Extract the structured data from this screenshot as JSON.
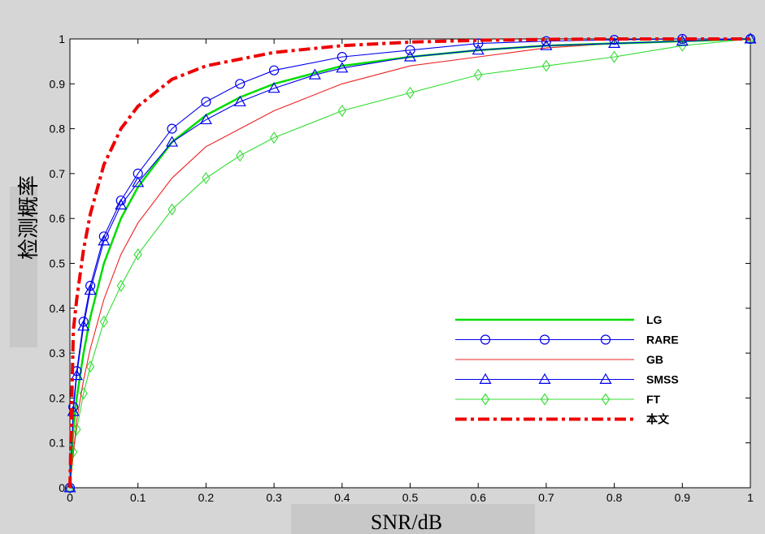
{
  "chart_data": {
    "type": "line",
    "title": "",
    "xlabel": "SNR/dB",
    "ylabel": "检测概率",
    "xlim": [
      0,
      1
    ],
    "ylim": [
      0,
      1
    ],
    "xticks": [
      "0",
      "0.1",
      "0.2",
      "0.3",
      "0.4",
      "0.5",
      "0.6",
      "0.7",
      "0.8",
      "0.9",
      "1"
    ],
    "yticks": [
      "0",
      "0.1",
      "0.2",
      "0.3",
      "0.4",
      "0.5",
      "0.6",
      "0.7",
      "0.8",
      "0.9",
      "1"
    ],
    "grid": false,
    "legend_position": "bottom-right",
    "series": [
      {
        "name": "LG",
        "color": "#00dd00",
        "style": "solid",
        "marker": "none",
        "x": [
          0,
          0.005,
          0.01,
          0.02,
          0.03,
          0.05,
          0.075,
          0.1,
          0.15,
          0.2,
          0.25,
          0.3,
          0.4,
          0.5,
          0.6,
          0.7,
          0.8,
          0.9,
          1.0
        ],
        "y": [
          0,
          0.13,
          0.2,
          0.3,
          0.38,
          0.5,
          0.6,
          0.67,
          0.77,
          0.83,
          0.87,
          0.9,
          0.94,
          0.96,
          0.975,
          0.985,
          0.99,
          0.995,
          1.0
        ]
      },
      {
        "name": "RARE",
        "color": "#0000ee",
        "style": "solid",
        "marker": "circle",
        "x": [
          0,
          0.005,
          0.01,
          0.02,
          0.03,
          0.05,
          0.075,
          0.1,
          0.15,
          0.2,
          0.25,
          0.3,
          0.4,
          0.5,
          0.6,
          0.7,
          0.8,
          0.9,
          1.0
        ],
        "y": [
          0,
          0.18,
          0.26,
          0.37,
          0.45,
          0.56,
          0.64,
          0.7,
          0.8,
          0.86,
          0.9,
          0.93,
          0.96,
          0.975,
          0.99,
          0.995,
          0.998,
          1.0,
          1.0
        ]
      },
      {
        "name": "GB",
        "color": "#ee2222",
        "style": "solid",
        "marker": "none",
        "x": [
          0,
          0.01,
          0.02,
          0.03,
          0.05,
          0.075,
          0.1,
          0.15,
          0.2,
          0.25,
          0.3,
          0.4,
          0.5,
          0.6,
          0.7,
          0.8,
          0.9,
          1.0
        ],
        "y": [
          0,
          0.15,
          0.24,
          0.31,
          0.42,
          0.52,
          0.59,
          0.69,
          0.76,
          0.8,
          0.84,
          0.9,
          0.94,
          0.96,
          0.98,
          0.99,
          0.995,
          1.0
        ]
      },
      {
        "name": "SMSS",
        "color": "#0000ee",
        "style": "solid",
        "marker": "triangle",
        "x": [
          0,
          0.005,
          0.01,
          0.02,
          0.03,
          0.05,
          0.075,
          0.1,
          0.15,
          0.2,
          0.25,
          0.3,
          0.36,
          0.4,
          0.5,
          0.6,
          0.7,
          0.8,
          0.9,
          1.0
        ],
        "y": [
          0,
          0.17,
          0.25,
          0.36,
          0.44,
          0.55,
          0.63,
          0.68,
          0.77,
          0.82,
          0.86,
          0.89,
          0.92,
          0.935,
          0.96,
          0.975,
          0.985,
          0.99,
          0.995,
          1.0
        ]
      },
      {
        "name": "FT",
        "color": "#33dd33",
        "style": "solid",
        "marker": "diamond",
        "x": [
          0,
          0.005,
          0.01,
          0.02,
          0.03,
          0.05,
          0.075,
          0.1,
          0.15,
          0.2,
          0.25,
          0.3,
          0.4,
          0.5,
          0.6,
          0.7,
          0.8,
          0.9,
          1.0
        ],
        "y": [
          0,
          0.08,
          0.13,
          0.21,
          0.27,
          0.37,
          0.45,
          0.52,
          0.62,
          0.69,
          0.74,
          0.78,
          0.84,
          0.88,
          0.92,
          0.94,
          0.96,
          0.985,
          1.0
        ]
      },
      {
        "name": "本文",
        "color": "#ee0000",
        "style": "dashdot",
        "marker": "none",
        "x": [
          0,
          0.005,
          0.01,
          0.02,
          0.03,
          0.05,
          0.075,
          0.1,
          0.15,
          0.2,
          0.25,
          0.3,
          0.4,
          0.5,
          0.6,
          0.7,
          0.8,
          0.9,
          1.0
        ],
        "y": [
          0,
          0.35,
          0.42,
          0.53,
          0.61,
          0.72,
          0.8,
          0.85,
          0.91,
          0.94,
          0.955,
          0.97,
          0.985,
          0.993,
          0.997,
          0.999,
          1.0,
          1.0,
          1.0
        ]
      }
    ]
  }
}
